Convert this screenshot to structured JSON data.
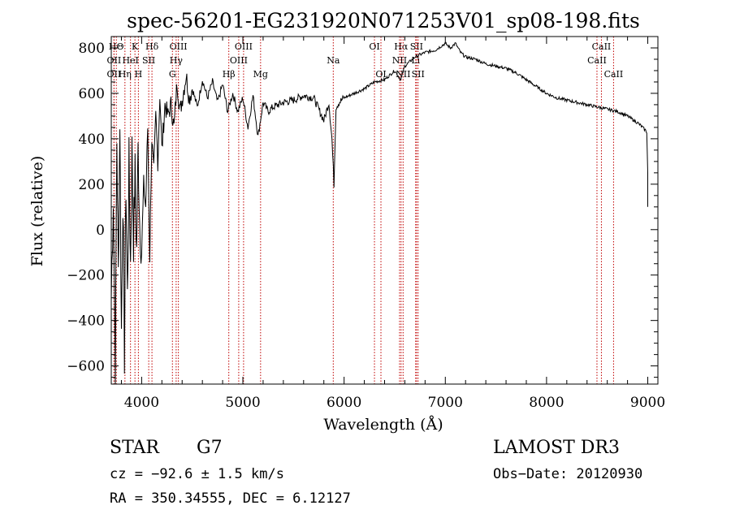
{
  "chart_data": {
    "type": "line",
    "title": "spec-56201-EG231920N071253V01_sp08-198.fits",
    "xlabel": "Wavelength (Å)",
    "ylabel": "Flux (relative)",
    "xlim": [
      3700,
      9100
    ],
    "ylim": [
      -680,
      850
    ],
    "x_ticks": [
      4000,
      5000,
      6000,
      7000,
      8000,
      9000
    ],
    "y_ticks": [
      -600,
      -400,
      -200,
      0,
      200,
      400,
      600,
      800
    ],
    "series": [
      {
        "name": "flux",
        "x": [
          3700,
          3720,
          3740,
          3755,
          3770,
          3785,
          3800,
          3815,
          3830,
          3845,
          3860,
          3875,
          3890,
          3905,
          3920,
          3935,
          3950,
          3965,
          3980,
          4000,
          4020,
          4040,
          4060,
          4080,
          4100,
          4120,
          4140,
          4160,
          4180,
          4200,
          4230,
          4260,
          4290,
          4320,
          4350,
          4380,
          4410,
          4440,
          4470,
          4500,
          4550,
          4600,
          4650,
          4700,
          4750,
          4800,
          4850,
          4900,
          4950,
          5000,
          5050,
          5100,
          5150,
          5200,
          5250,
          5300,
          5400,
          5500,
          5600,
          5700,
          5800,
          5850,
          5880,
          5900,
          5920,
          5950,
          6000,
          6100,
          6200,
          6300,
          6400,
          6500,
          6560,
          6600,
          6700,
          6800,
          6900,
          7000,
          7050,
          7100,
          7150,
          7200,
          7300,
          7400,
          7500,
          7600,
          7700,
          7800,
          7900,
          8000,
          8100,
          8200,
          8300,
          8400,
          8500,
          8600,
          8700,
          8800,
          8900,
          8950,
          8990,
          9000,
          9000
        ],
        "y": [
          -300,
          150,
          -600,
          400,
          -200,
          500,
          -450,
          150,
          -550,
          200,
          -300,
          300,
          -150,
          350,
          -50,
          250,
          -100,
          350,
          50,
          -100,
          200,
          100,
          450,
          -120,
          400,
          250,
          500,
          300,
          600,
          350,
          550,
          500,
          550,
          450,
          650,
          520,
          600,
          680,
          580,
          620,
          540,
          660,
          580,
          650,
          560,
          640,
          520,
          600,
          520,
          580,
          450,
          590,
          410,
          560,
          520,
          540,
          560,
          570,
          590,
          580,
          480,
          560,
          400,
          200,
          540,
          560,
          580,
          600,
          620,
          650,
          660,
          700,
          660,
          720,
          760,
          780,
          790,
          820,
          800,
          820,
          780,
          760,
          750,
          730,
          720,
          710,
          690,
          660,
          630,
          600,
          580,
          570,
          560,
          550,
          540,
          530,
          520,
          500,
          470,
          450,
          430,
          250,
          100
        ]
      }
    ],
    "emission_lines": [
      {
        "label": "HΘ",
        "x": 3750,
        "row": 1
      },
      {
        "label": "OII",
        "x": 3727,
        "row": 2
      },
      {
        "label": "OII",
        "x": 3727,
        "row": 3
      },
      {
        "label": "K",
        "x": 3934,
        "row": 1
      },
      {
        "label": "HeI",
        "x": 3890,
        "row": 2
      },
      {
        "label": "Hη",
        "x": 3835,
        "row": 3
      },
      {
        "label": "Hδ",
        "x": 4102,
        "row": 1
      },
      {
        "label": "SII",
        "x": 4070,
        "row": 2
      },
      {
        "label": "H",
        "x": 3968,
        "row": 3
      },
      {
        "label": "OIII",
        "x": 4363,
        "row": 1
      },
      {
        "label": "Hγ",
        "x": 4341,
        "row": 2
      },
      {
        "label": "G",
        "x": 4304,
        "row": 3
      },
      {
        "label": "OIII",
        "x": 5007,
        "row": 1
      },
      {
        "label": "OIII",
        "x": 4959,
        "row": 2
      },
      {
        "label": "Hβ",
        "x": 4861,
        "row": 3
      },
      {
        "label": "Mg",
        "x": 5175,
        "row": 3
      },
      {
        "label": "Na",
        "x": 5893,
        "row": 2
      },
      {
        "label": "OI",
        "x": 6300,
        "row": 1
      },
      {
        "label": "OI",
        "x": 6364,
        "row": 3
      },
      {
        "label": "Hα",
        "x": 6563,
        "row": 1
      },
      {
        "label": "SII",
        "x": 6716,
        "row": 1
      },
      {
        "label": "NII",
        "x": 6548,
        "row": 2
      },
      {
        "label": "Li",
        "x": 6707,
        "row": 2
      },
      {
        "label": "NII",
        "x": 6583,
        "row": 3
      },
      {
        "label": "SII",
        "x": 6731,
        "row": 3
      },
      {
        "label": "CaII",
        "x": 8542,
        "row": 1
      },
      {
        "label": "CaII",
        "x": 8498,
        "row": 2
      },
      {
        "label": "CaII",
        "x": 8662,
        "row": 3
      }
    ]
  },
  "info": {
    "object_class": "STAR",
    "subclass": "G7",
    "cz": "cz = −92.6 ± 1.5 km/s",
    "coords": "RA = 350.34555, DEC =    6.12127",
    "survey": "LAMOST DR3",
    "obs_date": "Obs−Date: 20120930"
  }
}
